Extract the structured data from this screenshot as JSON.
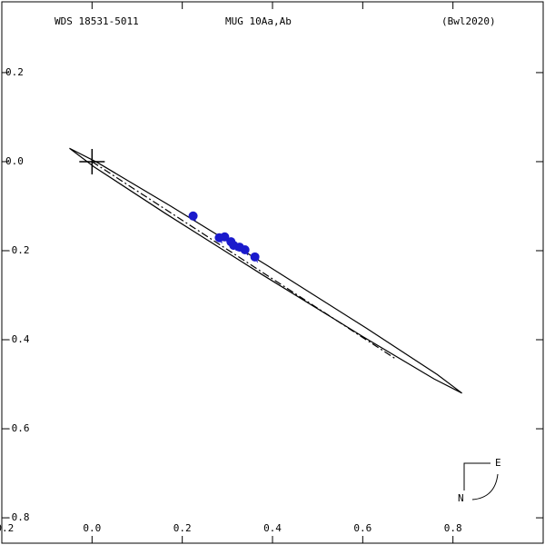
{
  "chart_data": {
    "type": "orbit",
    "header": {
      "left": "WDS 18531-5011",
      "center": "MUG  10Aa,Ab",
      "right": "(Bwl2020)"
    },
    "compass": {
      "east": "E",
      "north": "N"
    },
    "xlim": [
      -0.2,
      1.0
    ],
    "ylim": [
      -0.857,
      0.359
    ],
    "xticks": [
      -0.2,
      {
        "value": 0,
        "label": "0.0"
      },
      0.2,
      0.4,
      0.6,
      0.8
    ],
    "yticks": [
      0.2,
      {
        "value": 0,
        "label": "0.0"
      },
      -0.2,
      -0.4,
      -0.6,
      -0.8
    ],
    "orbit": {
      "color": "#000000",
      "x": [
        0.82,
        0.765,
        0.608,
        0.391,
        0.173,
        0.012,
        -0.05,
        0.005,
        0.162,
        0.379,
        0.597,
        0.758
      ],
      "y": [
        -0.52,
        -0.478,
        -0.374,
        -0.235,
        -0.099,
        -0.002,
        0.03,
        -0.012,
        -0.116,
        -0.255,
        -0.391,
        -0.488
      ]
    },
    "line_of_nodes": {
      "color": "#000000",
      "x": [
        0,
        0.673
      ],
      "y": [
        0,
        -0.443
      ]
    },
    "observations": {
      "color": "#1a1acc",
      "x": [
        0.224,
        0.282,
        0.294,
        0.308,
        0.314,
        0.327,
        0.339,
        0.361
      ],
      "y": [
        -0.122,
        -0.171,
        -0.169,
        -0.18,
        -0.188,
        -0.192,
        -0.198,
        -0.214
      ]
    }
  }
}
